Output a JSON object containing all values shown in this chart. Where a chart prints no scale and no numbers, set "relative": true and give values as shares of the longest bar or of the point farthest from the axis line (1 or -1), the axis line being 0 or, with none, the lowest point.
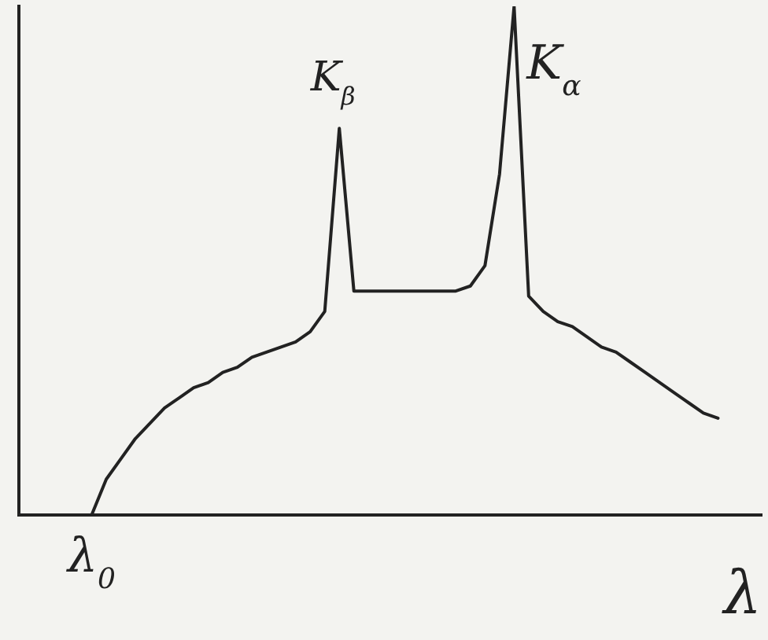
{
  "chart_data": {
    "type": "line",
    "relative": true,
    "xlabel": "λ",
    "tick_labels": false,
    "grid": false,
    "legend": false,
    "marker": "none",
    "line_style": "solid",
    "categories": [
      null,
      null,
      null,
      null,
      null,
      null,
      null,
      null,
      null,
      null,
      null,
      null,
      null,
      null,
      null,
      null,
      null,
      null,
      null,
      null,
      null,
      null,
      null,
      null,
      null,
      null,
      null,
      null,
      null,
      null,
      null,
      null,
      null,
      null,
      null,
      null,
      null,
      null,
      null,
      null,
      null,
      null,
      null,
      null,
      null,
      null,
      null,
      null,
      null,
      null,
      null,
      null
    ],
    "series": [
      {
        "color": "#222222",
        "values": [
          null,
          null,
          null,
          null,
          null,
          0,
          0.07,
          0.11,
          0.15,
          0.18,
          0.21,
          0.23,
          0.25,
          0.26,
          0.28,
          0.29,
          0.31,
          0.32,
          0.33,
          0.34,
          0.36,
          0.4,
          0.76,
          0.44,
          0.44,
          0.44,
          0.44,
          0.44,
          0.44,
          0.44,
          0.44,
          0.45,
          0.49,
          0.67,
          1,
          0.43,
          0.4,
          0.38,
          0.37,
          0.35,
          0.33,
          0.32,
          0.3,
          0.28,
          0.26,
          0.24,
          0.22,
          0.2,
          0.19,
          null,
          null,
          null
        ]
      }
    ],
    "annotations": [
      "K$_{β}$",
      "K$_{α}$",
      "λ$_{0}$"
    ]
  }
}
